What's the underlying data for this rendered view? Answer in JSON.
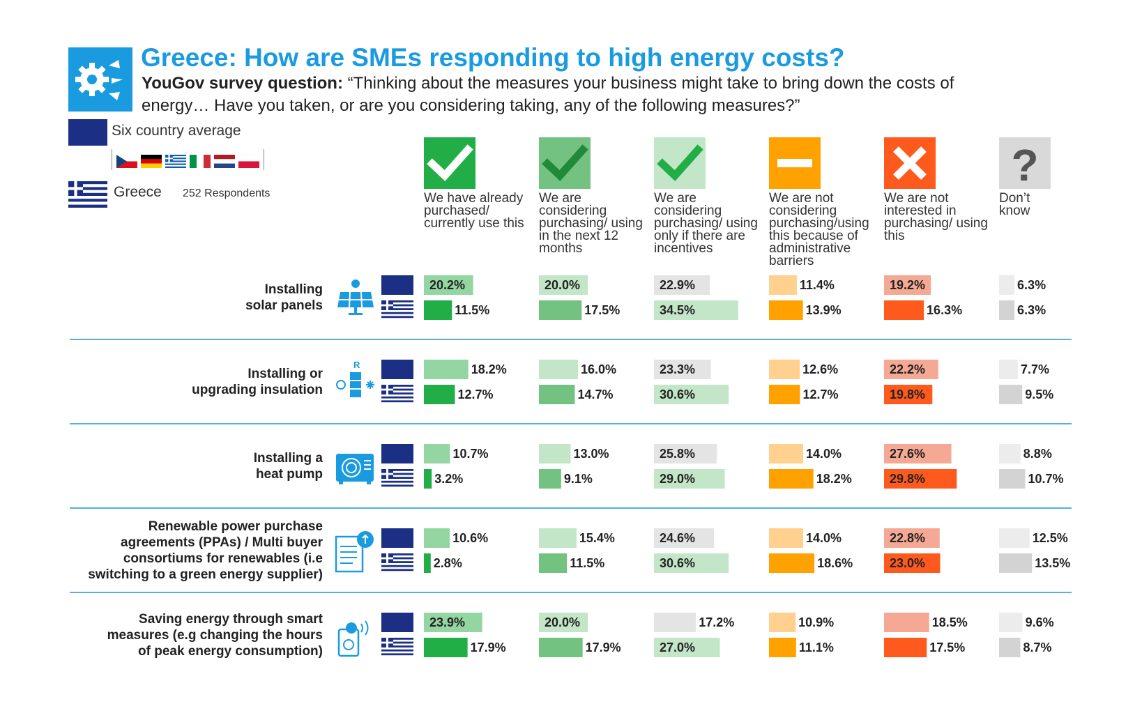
{
  "header": {
    "title": "Greece: How are SMEs responding to high energy costs?",
    "subtitle_lead": "YouGov survey question:",
    "subtitle_text": "“Thinking about the measures your business might take to bring down the costs of energy… Have you taken, or are you considering taking, any of the following measures?”"
  },
  "legend": {
    "average_label": "Six country average",
    "country_label": "Greece",
    "respondents_label": "252 Respondents",
    "flags": [
      "czech-flag",
      "german-flag",
      "greek-flag",
      "italian-flag",
      "dutch-flag",
      "polish-flag"
    ]
  },
  "colors": {
    "brand_blue": "#1a9be0",
    "eu_navy": "#1b2f84",
    "divider": "#5aaee0"
  },
  "chart_data": {
    "type": "bar",
    "title": "Greece: How are SMEs responding to high energy costs?",
    "series": [
      {
        "name": "Six country average"
      },
      {
        "name": "Greece"
      }
    ],
    "columns": [
      {
        "label": "We have already purchased/ currently use this",
        "icon": "check-icon",
        "avg_color": "#94d6a2",
        "gr_color": "#22ae47",
        "icon_bg": "#22ae47"
      },
      {
        "label": "We are considering purchasing/ using in the next 12 months",
        "icon": "check-icon",
        "avg_color": "#c2e6c7",
        "gr_color": "#74c281",
        "icon_bg": "#74c281"
      },
      {
        "label": "We are considering purchasing/ using only if there are incentives",
        "icon": "check-icon",
        "avg_color": "#e4e4e4",
        "gr_color": "#c2e6c7",
        "icon_bg": "#c2e6c7"
      },
      {
        "label": "We are not considering purchasing/using this because of administrative barriers",
        "icon": "minus-icon",
        "avg_color": "#ffd08e",
        "gr_color": "#ffa200",
        "icon_bg": "#ffa200"
      },
      {
        "label": "We are not interested in purchasing/ using this",
        "icon": "cross-icon",
        "avg_color": "#f5a994",
        "gr_color": "#ff5a1e",
        "icon_bg": "#ff5a1e"
      },
      {
        "label": "Don’t know",
        "icon": "question-icon",
        "avg_color": "#ececec",
        "gr_color": "#d3d3d3",
        "icon_bg": "#d9d9d9"
      }
    ],
    "rows": [
      {
        "label": [
          "Installing",
          "solar panels"
        ],
        "icon": "solar-panel-icon",
        "avg": [
          20.2,
          20.0,
          22.9,
          11.4,
          19.2,
          6.3
        ],
        "greece": [
          11.5,
          17.5,
          34.5,
          13.9,
          16.3,
          6.3
        ],
        "avg_text": [
          "20.2%",
          "20.0%",
          "22.9%",
          "11.4%",
          "19.2%",
          "6.3%"
        ],
        "greece_text": [
          "11.5%",
          "17.5%",
          "34.5%",
          "13.9%",
          "16.3%",
          "6.3%"
        ]
      },
      {
        "label": [
          "Installing or",
          "upgrading insulation"
        ],
        "icon": "insulation-icon",
        "avg": [
          18.2,
          16.0,
          23.3,
          12.6,
          22.2,
          7.7
        ],
        "greece": [
          12.7,
          14.7,
          30.6,
          12.7,
          19.8,
          9.5
        ],
        "avg_text": [
          "18.2%",
          "16.0%",
          "23.3%",
          "12.6%",
          "22.2%",
          "7.7%"
        ],
        "greece_text": [
          "12.7%",
          "14.7%",
          "30.6%",
          "12.7%",
          "19.8%",
          "9.5%"
        ]
      },
      {
        "label": [
          "Installing a",
          "heat pump"
        ],
        "icon": "heat-pump-icon",
        "avg": [
          10.7,
          13.0,
          25.8,
          14.0,
          27.6,
          8.8
        ],
        "greece": [
          3.2,
          9.1,
          29.0,
          18.2,
          29.8,
          10.7
        ],
        "avg_text": [
          "10.7%",
          "13.0%",
          "25.8%",
          "14.0%",
          "27.6%",
          "8.8%"
        ],
        "greece_text": [
          "3.2%",
          "9.1%",
          "29.0%",
          "18.2%",
          "29.8%",
          "10.7%"
        ]
      },
      {
        "label": [
          "Renewable power purchase",
          "agreements (PPAs) / Multi buyer",
          "consortiums for renewables (i.e",
          "switching to a green energy supplier)"
        ],
        "icon": "contract-icon",
        "avg": [
          10.6,
          15.4,
          24.6,
          14.0,
          22.8,
          12.5
        ],
        "greece": [
          2.8,
          11.5,
          30.6,
          18.6,
          23.0,
          13.5
        ],
        "avg_text": [
          "10.6%",
          "15.4%",
          "24.6%",
          "14.0%",
          "22.8%",
          "12.5%"
        ],
        "greece_text": [
          "2.8%",
          "11.5%",
          "30.6%",
          "18.6%",
          "23.0%",
          "13.5%"
        ]
      },
      {
        "label": [
          "Saving energy through smart",
          "measures (e.g changing the hours",
          "of peak energy consumption)"
        ],
        "icon": "smart-meter-icon",
        "avg": [
          23.9,
          20.0,
          17.2,
          10.9,
          18.5,
          9.6
        ],
        "greece": [
          17.9,
          17.9,
          27.0,
          11.1,
          17.5,
          8.7
        ],
        "avg_text": [
          "23.9%",
          "20.0%",
          "17.2%",
          "10.9%",
          "18.5%",
          "9.6%"
        ],
        "greece_text": [
          "17.9%",
          "17.9%",
          "27.0%",
          "11.1%",
          "17.5%",
          "8.7%"
        ]
      }
    ]
  }
}
